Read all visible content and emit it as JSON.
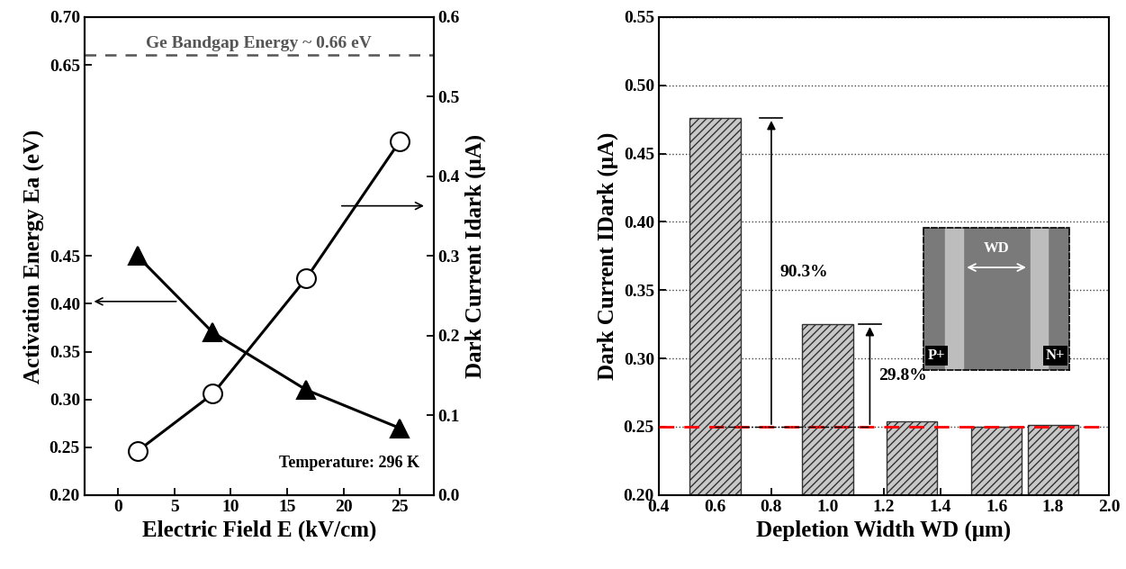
{
  "chart_data": [
    {
      "type": "line",
      "x_label": "Electric Field E (kV/cm)",
      "y_label": "Activation Energy Ea (eV)",
      "y2_label": "Dark Current Idark (μA)",
      "x": [
        1.7,
        8.4,
        16.7,
        25.0
      ],
      "series": [
        {
          "name": "Activation Energy Ea",
          "color": "#000000",
          "marker": "triangle",
          "line_style": "solid",
          "values": [
            0.45,
            0.37,
            0.31,
            0.27
          ]
        },
        {
          "name": "Dark Current Idark",
          "color": "#000000",
          "marker": "open_circle",
          "line_style": "solid",
          "axis": "y2",
          "values": [
            0.055,
            0.127,
            0.272,
            0.444
          ]
        }
      ],
      "xlim": [
        -3,
        28
      ],
      "xticks": [
        0,
        5,
        10,
        15,
        20,
        25
      ],
      "ylim": [
        0.2,
        0.7
      ],
      "yticks": [
        {
          "value": 0.2,
          "label": "0.20"
        },
        {
          "value": 0.25,
          "label": "0.25"
        },
        {
          "value": 0.3,
          "label": "0.30"
        },
        {
          "value": 0.35,
          "label": "0.35"
        },
        {
          "value": 0.4,
          "label": "0.40"
        },
        {
          "value": 0.45,
          "label": "0.45"
        },
        {
          "value": 0.65,
          "label": "0.65"
        },
        {
          "value": 0.7,
          "label": "0.70"
        }
      ],
      "y2lim": [
        0.0,
        0.6
      ],
      "y2ticks": [
        0.0,
        0.1,
        0.2,
        0.3,
        0.4,
        0.5,
        0.6
      ],
      "hline": {
        "value": 0.66,
        "label": "Ge Bandgap Energy ~ 0.66 eV",
        "color": "#555555"
      },
      "annotations": [
        "Temperature: 296 K"
      ],
      "grid": false
    },
    {
      "type": "bar",
      "x_label": "Depletion Width WD (μm)",
      "y_label": "Dark Current IDark (μA)",
      "x": [
        0.6,
        1.0,
        1.3,
        1.6,
        1.8
      ],
      "values": [
        0.476,
        0.325,
        0.254,
        0.25,
        0.251
      ],
      "color": "#c8c8c8",
      "xlim": [
        0.4,
        2.0
      ],
      "xticks": [
        0.4,
        0.6,
        0.8,
        1.0,
        1.2,
        1.4,
        1.6,
        1.8,
        2.0
      ],
      "ylim": [
        0.2,
        0.55
      ],
      "yticks": [
        {
          "value": 0.2,
          "label": "0.20"
        },
        {
          "value": 0.25,
          "label": "0.25"
        },
        {
          "value": 0.3,
          "label": "0.30"
        },
        {
          "value": 0.35,
          "label": "0.35"
        },
        {
          "value": 0.4,
          "label": "0.40"
        },
        {
          "value": 0.45,
          "label": "0.45"
        },
        {
          "value": 0.5,
          "label": "0.50"
        },
        {
          "value": 0.55,
          "label": "0.55"
        }
      ],
      "hline": {
        "value": 0.25,
        "color": "#ff0000"
      },
      "annotations": [
        {
          "text": "90.3%",
          "x": 0.8,
          "from": 0.25,
          "to": 0.476
        },
        {
          "text": "29.8%",
          "x": 1.15,
          "from": 0.25,
          "to": 0.325
        }
      ],
      "inset_labels": [
        "P+",
        "N+",
        "WD"
      ],
      "grid": true
    }
  ]
}
